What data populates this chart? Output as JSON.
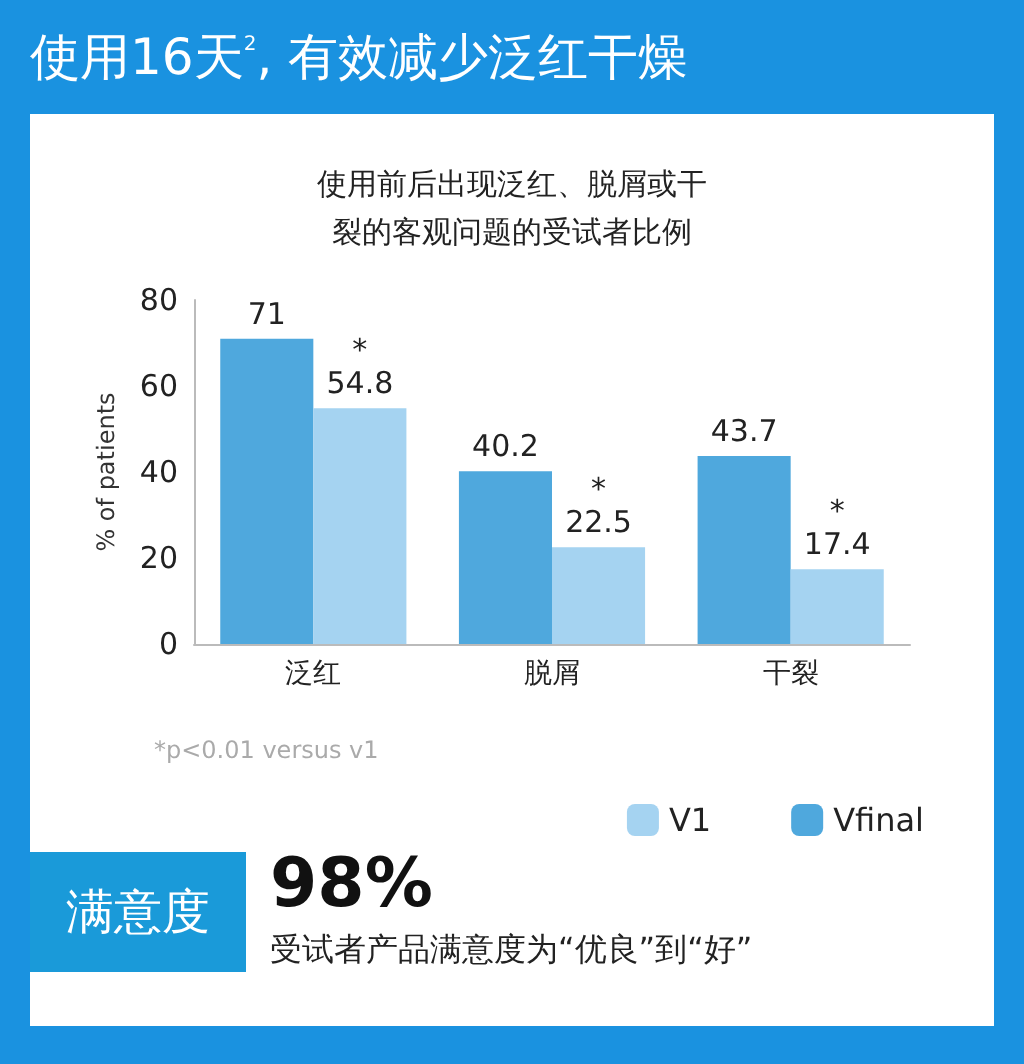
{
  "chart_data": {
    "type": "bar",
    "title": "使用16天$^{2}$, 有效减少泛红干燥",
    "subtitle": "使用前后出现泛红、脱屑或干裂的客观问题的受试者比例",
    "ylabel": "% of patients",
    "categories": [
      "泛红",
      "脱屑",
      "干裂"
    ],
    "series": [
      {
        "name": "Vfinal",
        "color": "#4fa8dd",
        "values": [
          71,
          40.2,
          43.7
        ]
      },
      {
        "name": "V1",
        "color": "#a5d3f1",
        "values": [
          54.8,
          22.5,
          17.4
        ]
      }
    ],
    "ylim": [
      0,
      80
    ],
    "yticks": [
      0,
      20,
      40,
      60,
      80
    ],
    "grid": false,
    "legend": "bottom right",
    "data_labels": true,
    "annotations": [
      {
        "text": "*",
        "x": "泛红",
        "y": 54.8
      },
      {
        "text": "*",
        "x": "脱屑",
        "y": 22.5
      },
      {
        "text": "*",
        "x": "干裂",
        "y": 17.4
      },
      "*p<0.01 versus v1",
      "满意度",
      "98%",
      "受试者产品满意度为“优良”到“好”"
    ]
  }
}
